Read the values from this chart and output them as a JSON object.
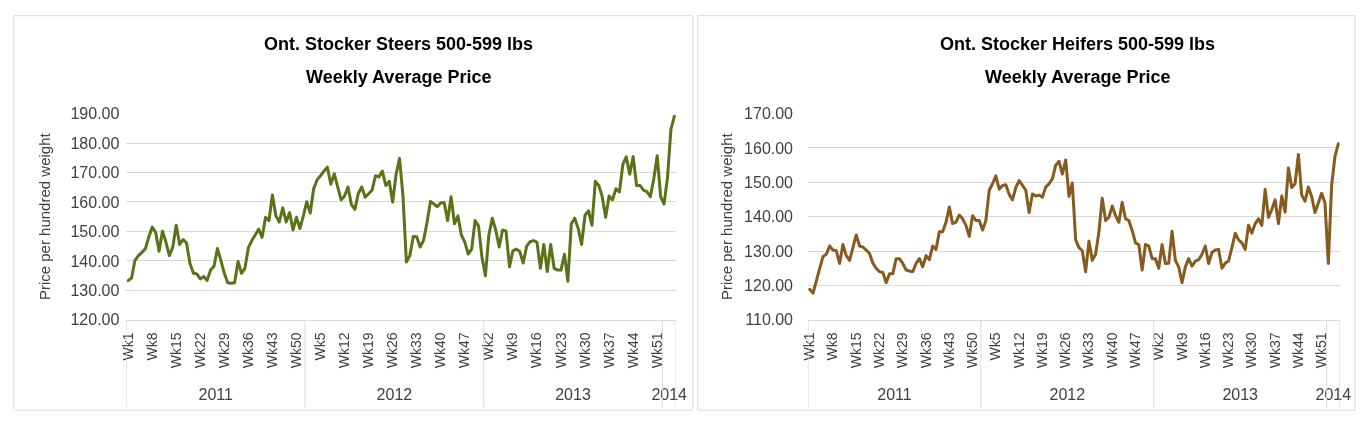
{
  "chart_data": [
    {
      "type": "line",
      "title": "Ont. Stocker Steers 500-599 lbs\nWeekly Average Price",
      "ylabel": "Price per hundred weight",
      "categories": [
        "Wk1",
        null,
        null,
        null,
        null,
        null,
        null,
        "Wk8",
        null,
        null,
        null,
        null,
        null,
        null,
        "Wk15",
        null,
        null,
        null,
        null,
        null,
        null,
        "Wk22",
        null,
        null,
        null,
        null,
        null,
        null,
        "Wk29",
        null,
        null,
        null,
        null,
        null,
        null,
        "Wk36",
        null,
        null,
        null,
        null,
        null,
        null,
        "Wk43",
        null,
        null,
        null,
        null,
        null,
        null,
        "Wk50",
        null,
        null,
        null,
        null,
        null,
        null,
        "Wk5",
        null,
        null,
        null,
        null,
        null,
        null,
        "Wk12",
        null,
        null,
        null,
        null,
        null,
        null,
        "Wk19",
        null,
        null,
        null,
        null,
        null,
        null,
        "Wk26",
        null,
        null,
        null,
        null,
        null,
        null,
        "Wk33",
        null,
        null,
        null,
        null,
        null,
        null,
        "Wk40",
        null,
        null,
        null,
        null,
        null,
        null,
        "Wk47",
        null,
        null,
        null,
        null,
        null,
        null,
        "Wk2",
        null,
        null,
        null,
        null,
        null,
        null,
        "Wk9",
        null,
        null,
        null,
        null,
        null,
        null,
        "Wk16",
        null,
        null,
        null,
        null,
        null,
        null,
        "Wk23",
        null,
        null,
        null,
        null,
        null,
        null,
        "Wk30",
        null,
        null,
        null,
        null,
        null,
        null,
        "Wk37",
        null,
        null,
        null,
        null,
        null,
        null,
        "Wk44",
        null,
        null,
        null,
        null,
        null,
        null,
        "Wk51",
        null,
        null,
        null,
        null,
        null
      ],
      "x2lim": [
        "2011-01-03",
        "2014-01-27"
      ],
      "x2ticks": [
        {
          "value": "2011-07-04",
          "label": "2011"
        },
        {
          "value": "2012-07-02",
          "label": "2012"
        },
        {
          "value": "2013-07-01",
          "label": "2013"
        },
        {
          "value": "2014-01-13",
          "label": "2014"
        }
      ],
      "color": "#5a7319",
      "values": [
        133.3,
        134.2,
        140.2,
        141.8,
        142.9,
        144.1,
        148.0,
        151.5,
        149.7,
        143.3,
        150.1,
        146.4,
        141.8,
        144.7,
        152.1,
        145.6,
        147.2,
        146.1,
        139.1,
        135.8,
        135.6,
        133.9,
        134.7,
        133.4,
        136.9,
        138.2,
        144.2,
        140.2,
        135.8,
        132.6,
        132.4,
        132.6,
        139.8,
        135.8,
        137.5,
        144.5,
        146.9,
        148.8,
        150.8,
        148.0,
        154.8,
        153.7,
        162.4,
        155.3,
        153.2,
        158.0,
        153.2,
        156.4,
        150.5,
        154.8,
        151.0,
        155.3,
        160.1,
        156.2,
        164.5,
        167.5,
        168.9,
        170.5,
        171.8,
        166.0,
        169.6,
        165.1,
        160.7,
        162.0,
        165.1,
        159.1,
        157.5,
        162.9,
        165.1,
        161.6,
        162.8,
        164.0,
        168.9,
        168.5,
        170.5,
        165.6,
        167.0,
        160.0,
        169.4,
        174.8,
        162.0,
        139.6,
        141.8,
        148.3,
        148.2,
        144.7,
        147.0,
        153.0,
        160.2,
        159.3,
        158.4,
        159.7,
        159.7,
        153.7,
        161.8,
        152.6,
        155.3,
        148.8,
        146.4,
        142.3,
        144.0,
        153.7,
        151.8,
        141.2,
        135.0,
        148.8,
        154.5,
        150.5,
        144.7,
        150.5,
        150.1,
        138.0,
        143.4,
        144.0,
        143.2,
        139.3,
        145.0,
        146.5,
        146.9,
        146.4,
        137.5,
        145.6,
        136.4,
        145.6,
        137.5,
        136.9,
        136.9,
        142.3,
        133.1,
        152.6,
        154.5,
        151.0,
        145.6,
        155.5,
        157.0,
        152.1,
        167.0,
        165.6,
        161.8,
        154.8,
        162.0,
        160.7,
        164.5,
        163.4,
        172.7,
        175.3,
        169.4,
        175.4,
        165.6,
        165.6,
        164.0,
        163.5,
        161.8,
        167.8,
        175.7,
        161.8,
        159.3,
        168.3,
        184.6,
        189.1
      ],
      "ylim": [
        120,
        190
      ],
      "yticks": [
        {
          "value": 120,
          "label": "120.00"
        },
        {
          "value": 130,
          "label": "130.00"
        },
        {
          "value": 140,
          "label": "140.00"
        },
        {
          "value": 150,
          "label": "150.00"
        },
        {
          "value": 160,
          "label": "160.00"
        },
        {
          "value": 170,
          "label": "170.00"
        },
        {
          "value": 180,
          "label": "180.00"
        },
        {
          "value": 190,
          "label": "190.00"
        }
      ],
      "grid": "y"
    },
    {
      "type": "line",
      "title": "Ont. Stocker Heifers 500-599 lbs\nWeekly Average Price",
      "ylabel": "Price per hundred weight",
      "categories": [
        "Wk1",
        null,
        null,
        null,
        null,
        null,
        null,
        "Wk8",
        null,
        null,
        null,
        null,
        null,
        null,
        "Wk15",
        null,
        null,
        null,
        null,
        null,
        null,
        "Wk22",
        null,
        null,
        null,
        null,
        null,
        null,
        "Wk29",
        null,
        null,
        null,
        null,
        null,
        null,
        "Wk36",
        null,
        null,
        null,
        null,
        null,
        null,
        "Wk43",
        null,
        null,
        null,
        null,
        null,
        null,
        "Wk50",
        null,
        null,
        null,
        null,
        null,
        null,
        "Wk5",
        null,
        null,
        null,
        null,
        null,
        null,
        "Wk12",
        null,
        null,
        null,
        null,
        null,
        null,
        "Wk19",
        null,
        null,
        null,
        null,
        null,
        null,
        "Wk26",
        null,
        null,
        null,
        null,
        null,
        null,
        "Wk33",
        null,
        null,
        null,
        null,
        null,
        null,
        "Wk40",
        null,
        null,
        null,
        null,
        null,
        null,
        "Wk47",
        null,
        null,
        null,
        null,
        null,
        null,
        "Wk2",
        null,
        null,
        null,
        null,
        null,
        null,
        "Wk9",
        null,
        null,
        null,
        null,
        null,
        null,
        "Wk16",
        null,
        null,
        null,
        null,
        null,
        null,
        "Wk23",
        null,
        null,
        null,
        null,
        null,
        null,
        "Wk30",
        null,
        null,
        null,
        null,
        null,
        null,
        "Wk37",
        null,
        null,
        null,
        null,
        null,
        null,
        "Wk44",
        null,
        null,
        null,
        null,
        null,
        null,
        "Wk51",
        null,
        null,
        null,
        null,
        null
      ],
      "x2lim": [
        "2011-01-03",
        "2014-01-27"
      ],
      "x2ticks": [
        {
          "value": "2011-07-04",
          "label": "2011"
        },
        {
          "value": "2012-07-02",
          "label": "2012"
        },
        {
          "value": "2013-07-01",
          "label": "2013"
        },
        {
          "value": "2014-01-13",
          "label": "2014"
        }
      ],
      "color": "#875a1e",
      "values": [
        118.9,
        117.8,
        121.3,
        125.0,
        128.4,
        129.1,
        131.5,
        130.3,
        130.1,
        126.4,
        131.9,
        128.7,
        127.3,
        131.0,
        134.7,
        131.5,
        131.2,
        130.3,
        129.3,
        126.5,
        125.0,
        124.0,
        123.8,
        120.8,
        123.4,
        123.4,
        127.8,
        127.8,
        126.4,
        124.5,
        124.2,
        124.0,
        126.4,
        127.8,
        125.4,
        128.7,
        127.5,
        131.5,
        130.5,
        135.6,
        135.6,
        138.4,
        142.8,
        138.0,
        138.4,
        140.5,
        139.4,
        137.5,
        134.3,
        140.3,
        138.9,
        138.9,
        136.1,
        138.9,
        147.7,
        149.6,
        151.9,
        148.0,
        149.1,
        149.3,
        146.5,
        144.9,
        148.5,
        150.5,
        149.1,
        147.7,
        141.2,
        146.6,
        146.0,
        146.3,
        145.7,
        148.6,
        149.6,
        151.0,
        155.0,
        156.1,
        152.4,
        156.5,
        145.9,
        149.8,
        133.3,
        131.0,
        130.1,
        124.0,
        132.9,
        127.3,
        129.1,
        135.6,
        145.4,
        138.9,
        139.8,
        143.1,
        140.3,
        138.4,
        144.2,
        139.4,
        138.9,
        136.0,
        132.4,
        131.9,
        124.5,
        131.9,
        131.5,
        127.8,
        127.8,
        125.0,
        131.9,
        126.4,
        126.5,
        135.8,
        127.3,
        125.4,
        120.8,
        125.4,
        127.8,
        125.6,
        127.1,
        127.5,
        129.1,
        131.5,
        126.4,
        129.6,
        130.3,
        130.5,
        125.0,
        126.5,
        127.1,
        131.0,
        135.2,
        133.3,
        132.4,
        130.5,
        137.5,
        135.2,
        138.0,
        139.4,
        137.5,
        147.9,
        139.8,
        142.1,
        144.9,
        138.0,
        146.0,
        141.4,
        154.2,
        148.5,
        149.6,
        158.1,
        146.3,
        144.5,
        148.6,
        145.9,
        141.2,
        144.0,
        146.8,
        144.0,
        126.4,
        149.1,
        157.5,
        161.2
      ],
      "ylim": [
        110,
        170
      ],
      "yticks": [
        {
          "value": 110,
          "label": "110.00"
        },
        {
          "value": 120,
          "label": "120.00"
        },
        {
          "value": 130,
          "label": "130.00"
        },
        {
          "value": 140,
          "label": "140.00"
        },
        {
          "value": 150,
          "label": "150.00"
        },
        {
          "value": 160,
          "label": "160.00"
        },
        {
          "value": 170,
          "label": "170.00"
        }
      ],
      "grid": "y"
    }
  ]
}
